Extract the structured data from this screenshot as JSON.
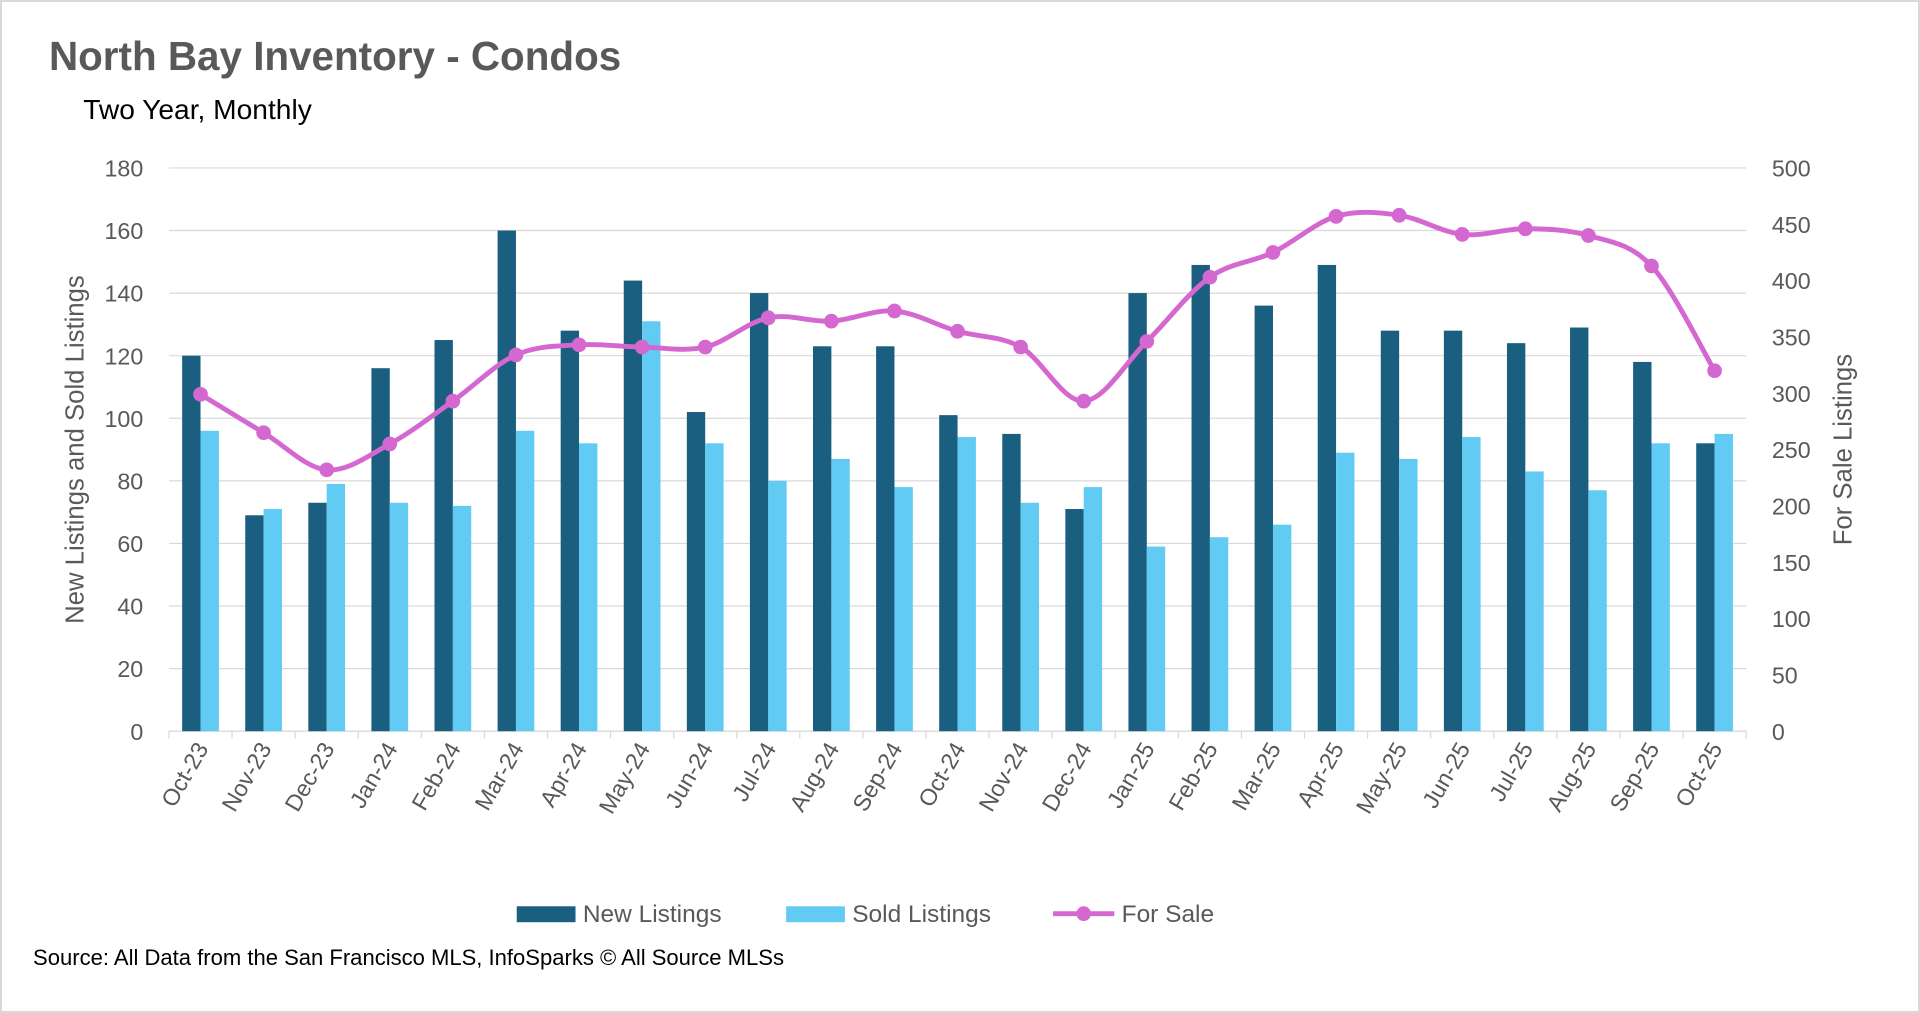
{
  "chart_data": {
    "type": "bar",
    "title": "North Bay Inventory - Condos",
    "subtitle": "Two Year, Monthly",
    "ylabel": "New Listings and Sold Listings",
    "y2label": "For Sale Listings",
    "ylim": [
      0,
      180
    ],
    "y2lim": [
      0,
      500
    ],
    "yticks": [
      0,
      20,
      40,
      60,
      80,
      100,
      120,
      140,
      160,
      180
    ],
    "y2ticks": [
      0,
      50,
      100,
      150,
      200,
      250,
      300,
      350,
      400,
      450,
      500
    ],
    "grid": true,
    "legend_position": "bottom",
    "categories": [
      "Oct-23",
      "Nov-23",
      "Dec-23",
      "Jan-24",
      "Feb-24",
      "Mar-24",
      "Apr-24",
      "May-24",
      "Jun-24",
      "Jul-24",
      "Aug-24",
      "Sep-24",
      "Oct-24",
      "Nov-24",
      "Dec-24",
      "Jan-25",
      "Feb-25",
      "Mar-25",
      "Apr-25",
      "May-25",
      "Jun-25",
      "Jul-25",
      "Aug-25",
      "Sep-25",
      "Oct-25"
    ],
    "series": [
      {
        "name": "New Listings",
        "type": "bar",
        "axis": "left",
        "color": "#1a5f7f",
        "values": [
          120,
          69,
          73,
          116,
          125,
          160,
          128,
          144,
          102,
          140,
          123,
          123,
          101,
          95,
          71,
          140,
          149,
          136,
          149,
          128,
          128,
          124,
          129,
          118,
          92
        ]
      },
      {
        "name": "Sold Listings",
        "type": "bar",
        "axis": "left",
        "color": "#62cbf4",
        "values": [
          96,
          71,
          79,
          73,
          72,
          96,
          92,
          131,
          92,
          80,
          87,
          78,
          94,
          73,
          78,
          59,
          62,
          66,
          89,
          87,
          94,
          83,
          77,
          92,
          95
        ]
      },
      {
        "name": "For Sale",
        "type": "line",
        "axis": "right",
        "color": "#d467d0",
        "smooth": true,
        "markers": true,
        "values": [
          299,
          265,
          232,
          255,
          293,
          334,
          343,
          341,
          341,
          367,
          364,
          373,
          355,
          341,
          293,
          346,
          403,
          425,
          457,
          458,
          441,
          446,
          440,
          413,
          320
        ]
      }
    ],
    "source": "Source: All Data from the San Francisco MLS, InfoSparks © All Source MLSs"
  }
}
